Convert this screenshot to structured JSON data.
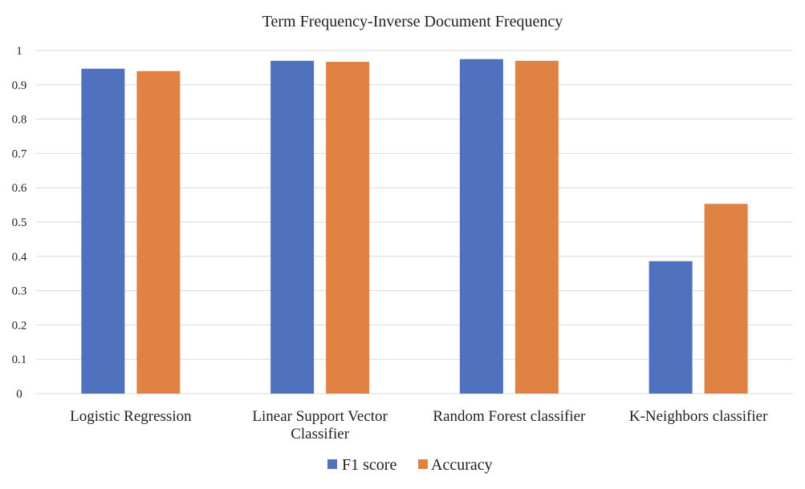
{
  "chart_data": {
    "type": "bar",
    "title": "Term Frequency-Inverse Document Frequency",
    "categories": [
      [
        "Logistic Regression"
      ],
      [
        "Linear Support Vector",
        "Classifier"
      ],
      [
        "Random Forest classifier"
      ],
      [
        "K-Neighbors classifier"
      ]
    ],
    "series": [
      {
        "name": "F1 score",
        "color": "#4f71be",
        "values": [
          0.947,
          0.97,
          0.975,
          0.386
        ]
      },
      {
        "name": "Accuracy",
        "color": "#df8244",
        "values": [
          0.94,
          0.967,
          0.97,
          0.553
        ]
      }
    ],
    "yticks": [
      "0",
      "0.1",
      "0.2",
      "0.3",
      "0.4",
      "0.5",
      "0.6",
      "0.7",
      "0.8",
      "0.9",
      "1"
    ],
    "ylim": [
      0,
      1
    ],
    "xlabel": "",
    "ylabel": "",
    "grid": true,
    "legend_position": "bottom-center"
  }
}
